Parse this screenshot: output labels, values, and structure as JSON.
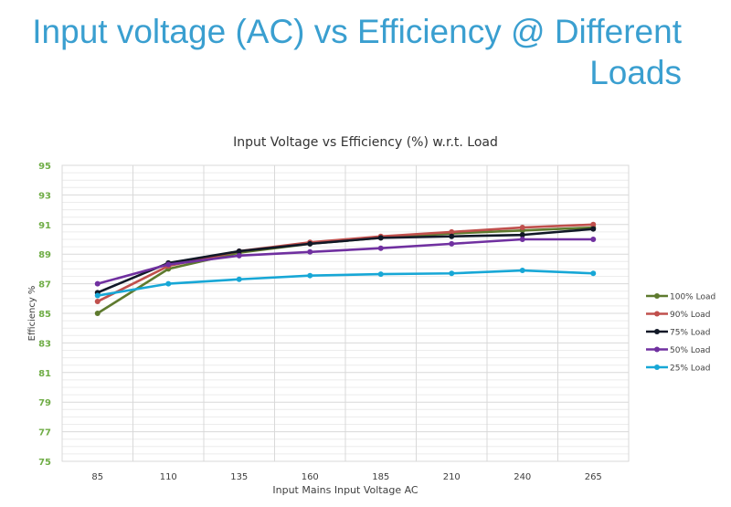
{
  "slide": {
    "title_line1": "Input voltage (AC) vs Efficiency @ Different",
    "title_line2": "Loads"
  },
  "chart_data": {
    "type": "line",
    "title": "Input Voltage vs Efficiency (%) w.r.t. Load",
    "xlabel": "Input Mains Input Voltage AC",
    "ylabel": "Efficiency %",
    "categories": [
      "85",
      "110",
      "135",
      "160",
      "185",
      "210",
      "240",
      "265"
    ],
    "ylim": [
      75,
      95
    ],
    "yticks": [
      75,
      77,
      79,
      81,
      83,
      85,
      87,
      89,
      91,
      93,
      95
    ],
    "grid": true,
    "legend_position": "right",
    "series": [
      {
        "name": "100% Load",
        "color": "#5e7a2e",
        "values": [
          85.0,
          88.0,
          89.1,
          89.7,
          90.1,
          90.4,
          90.6,
          90.8
        ]
      },
      {
        "name": "90% Load",
        "color": "#c0504d",
        "values": [
          85.8,
          88.2,
          89.2,
          89.8,
          90.2,
          90.5,
          90.8,
          91.0
        ]
      },
      {
        "name": "75% Load",
        "color": "#111827",
        "values": [
          86.4,
          88.4,
          89.2,
          89.7,
          90.1,
          90.2,
          90.3,
          90.7
        ]
      },
      {
        "name": "50% Load",
        "color": "#7030a0",
        "values": [
          87.0,
          88.3,
          88.9,
          89.15,
          89.4,
          89.7,
          90.0,
          90.0
        ]
      },
      {
        "name": "25% Load",
        "color": "#17a7d6",
        "values": [
          86.2,
          87.0,
          87.3,
          87.55,
          87.65,
          87.7,
          87.9,
          87.7
        ]
      }
    ]
  }
}
